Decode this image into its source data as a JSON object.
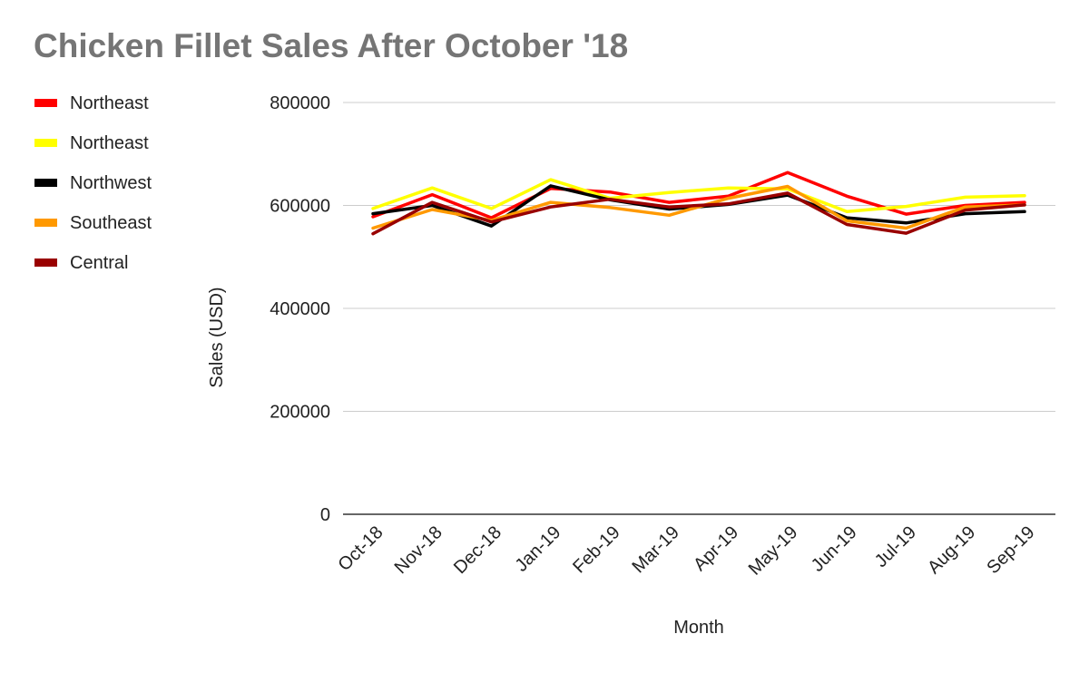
{
  "chart_data": {
    "type": "line",
    "title": "Chicken Fillet Sales After October '18",
    "xlabel": "Month",
    "ylabel": "Sales (USD)",
    "ylim": [
      0,
      800000
    ],
    "yticks": [
      "0",
      "200000",
      "400000",
      "600000",
      "800000"
    ],
    "grid": true,
    "legend_position": "left",
    "categories": [
      "Oct-18",
      "Nov-18",
      "Dec-18",
      "Jan-19",
      "Feb-19",
      "Mar-19",
      "Apr-19",
      "May-19",
      "Jun-19",
      "Jul-19",
      "Aug-19",
      "Sep-19"
    ],
    "series": [
      {
        "name": "Northeast",
        "color": "#ff0000",
        "values": [
          578000,
          621000,
          576000,
          633000,
          626000,
          606000,
          618000,
          664000,
          618000,
          583000,
          600000,
          606000
        ]
      },
      {
        "name": "Northeast",
        "color": "#ffff00",
        "values": [
          594000,
          634000,
          594000,
          650000,
          614000,
          625000,
          634000,
          632000,
          588000,
          598000,
          616000,
          619000
        ]
      },
      {
        "name": "Northwest",
        "color": "#000000",
        "values": [
          584000,
          600000,
          560000,
          638000,
          611000,
          593000,
          602000,
          620000,
          576000,
          566000,
          584000,
          588000
        ]
      },
      {
        "name": "Southeast",
        "color": "#ff9900",
        "values": [
          556000,
          592000,
          571000,
          606000,
          596000,
          581000,
          614000,
          637000,
          570000,
          556000,
          597000,
          601000
        ]
      },
      {
        "name": "Central",
        "color": "#990000",
        "values": [
          545000,
          606000,
          568000,
          597000,
          612000,
          597000,
          603000,
          624000,
          563000,
          546000,
          591000,
          601000
        ]
      }
    ]
  }
}
